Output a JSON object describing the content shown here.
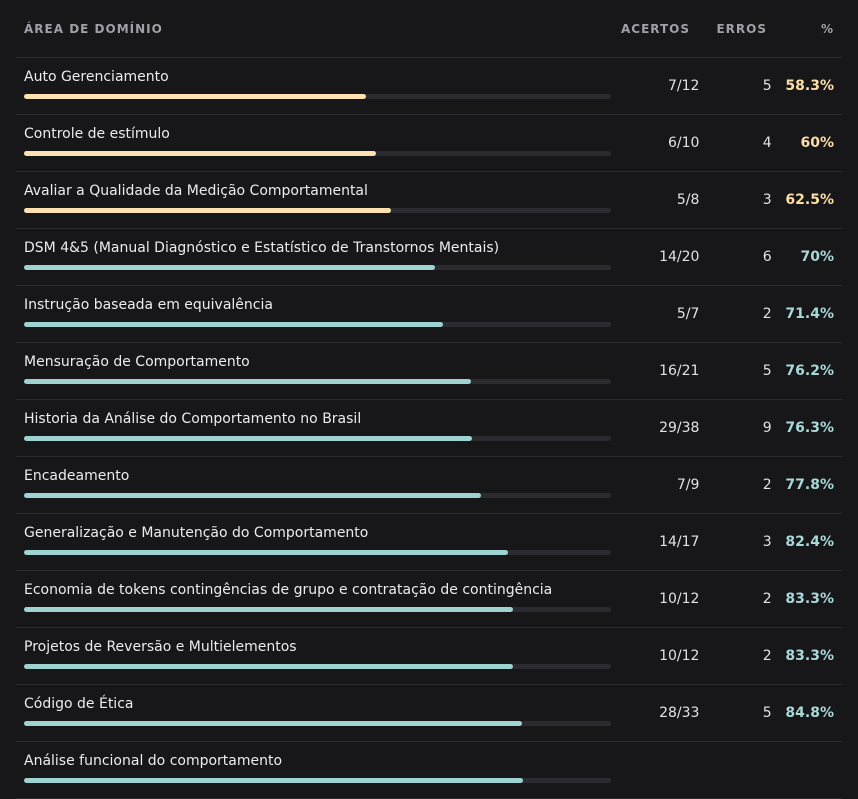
{
  "header": {
    "area": "ÁREA DE DOMÍNIO",
    "acertos": "ACERTOS",
    "erros": "ERROS",
    "pct": "%"
  },
  "colors": {
    "warn": "#fde2b0",
    "good": "#9ed3d2"
  },
  "rows": [
    {
      "area": "Auto Gerenciamento",
      "acertos": "7/12",
      "erros": "5",
      "pct": "58.3%",
      "fraction": 0.583,
      "status": "warn"
    },
    {
      "area": "Controle de estímulo",
      "acertos": "6/10",
      "erros": "4",
      "pct": "60%",
      "fraction": 0.6,
      "status": "warn"
    },
    {
      "area": "Avaliar a Qualidade da Medição Comportamental",
      "acertos": "5/8",
      "erros": "3",
      "pct": "62.5%",
      "fraction": 0.625,
      "status": "warn"
    },
    {
      "area": "DSM 4&5 (Manual Diagnóstico e Estatístico de Transtornos Mentais)",
      "acertos": "14/20",
      "erros": "6",
      "pct": "70%",
      "fraction": 0.7,
      "status": "good"
    },
    {
      "area": "Instrução baseada em equivalência",
      "acertos": "5/7",
      "erros": "2",
      "pct": "71.4%",
      "fraction": 0.714,
      "status": "good"
    },
    {
      "area": "Mensuração de Comportamento",
      "acertos": "16/21",
      "erros": "5",
      "pct": "76.2%",
      "fraction": 0.762,
      "status": "good"
    },
    {
      "area": "Historia da Análise do Comportamento no Brasil",
      "acertos": "29/38",
      "erros": "9",
      "pct": "76.3%",
      "fraction": 0.763,
      "status": "good"
    },
    {
      "area": "Encadeamento",
      "acertos": "7/9",
      "erros": "2",
      "pct": "77.8%",
      "fraction": 0.778,
      "status": "good"
    },
    {
      "area": "Generalização e Manutenção do Comportamento",
      "acertos": "14/17",
      "erros": "3",
      "pct": "82.4%",
      "fraction": 0.824,
      "status": "good"
    },
    {
      "area": "Economia de tokens contingências de grupo e contratação de contingência",
      "acertos": "10/12",
      "erros": "2",
      "pct": "83.3%",
      "fraction": 0.833,
      "status": "good"
    },
    {
      "area": "Projetos de Reversão e Multielementos",
      "acertos": "10/12",
      "erros": "2",
      "pct": "83.3%",
      "fraction": 0.833,
      "status": "good"
    },
    {
      "area": "Código de Ética",
      "acertos": "28/33",
      "erros": "5",
      "pct": "84.8%",
      "fraction": 0.848,
      "status": "good"
    },
    {
      "area": "Análise funcional do comportamento",
      "acertos": "",
      "erros": "",
      "pct": "",
      "fraction": 0.85,
      "status": "good"
    }
  ]
}
